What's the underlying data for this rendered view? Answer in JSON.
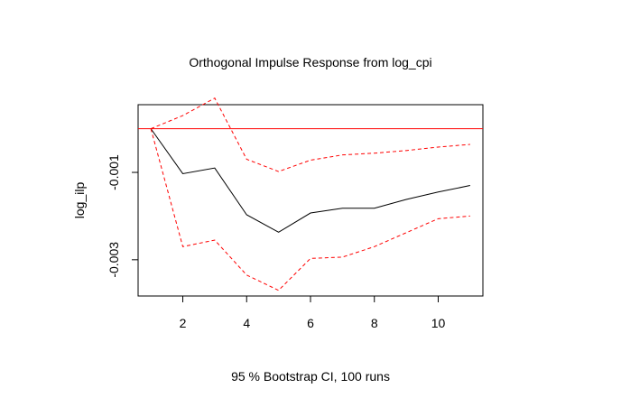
{
  "chart_data": {
    "type": "line",
    "title": "Orthogonal Impulse Response from log_cpi",
    "ylabel": "log_ilp",
    "xlabel": "95 % Bootstrap CI,  100 runs",
    "x": [
      1,
      2,
      3,
      4,
      5,
      6,
      7,
      8,
      9,
      10,
      11
    ],
    "xlim": [
      0.6,
      11.4
    ],
    "ylim": [
      -0.00383,
      0.00055
    ],
    "x_ticks": [
      2,
      4,
      6,
      8,
      10
    ],
    "y_ticks": [
      -0.003,
      -0.001
    ],
    "y_tick_labels": [
      "-0.003",
      "-0.001"
    ],
    "grid": false,
    "zero_line": {
      "y": 0,
      "color": "#ff0000"
    },
    "series": [
      {
        "role": "response",
        "color": "#000000",
        "dash": "solid",
        "values": [
          0.0,
          -0.00103,
          -0.0009,
          -0.00197,
          -0.00237,
          -0.00193,
          -0.00182,
          -0.00182,
          -0.00162,
          -0.00145,
          -0.0013
        ]
      },
      {
        "role": "upper",
        "color": "#ff0000",
        "dash": "dashed",
        "values": [
          0.0,
          0.0003,
          0.0007,
          -0.0007,
          -0.00098,
          -0.00072,
          -0.0006,
          -0.00056,
          -0.0005,
          -0.00042,
          -0.00036
        ]
      },
      {
        "role": "lower",
        "color": "#ff0000",
        "dash": "dashed",
        "values": [
          0.0,
          -0.0027,
          -0.00255,
          -0.00335,
          -0.0037,
          -0.00297,
          -0.00294,
          -0.0027,
          -0.00238,
          -0.00206,
          -0.002
        ]
      }
    ]
  }
}
